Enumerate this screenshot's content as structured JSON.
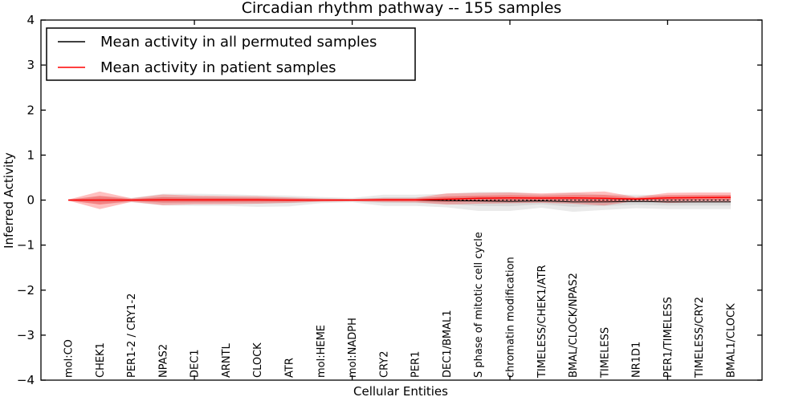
{
  "chart_data": {
    "type": "line",
    "title": "Circadian rhythm pathway -- 155 samples",
    "xlabel": "Cellular Entities",
    "ylabel": "Inferred Activity",
    "ylim": [
      -4,
      4
    ],
    "yticks": [
      -4,
      -3,
      -2,
      -1,
      0,
      1,
      2,
      3,
      4
    ],
    "xtick_indices": [
      4,
      9,
      14,
      19
    ],
    "grid": false,
    "legend_position": "upper left",
    "categories": [
      "mol:CO",
      "CHEK1",
      "PER1-2 / CRY1-2",
      "NPAS2",
      "DEC1",
      "ARNTL",
      "CLOCK",
      "ATR",
      "mol:HEME",
      "mol:NADPH",
      "CRY2",
      "PER1",
      "DEC1/BMAL1",
      "S phase of mitotic cell cycle",
      "chromatin modification",
      "TIMELESS/CHEK1/ATR",
      "BMAL/CLOCK/NPAS2",
      "TIMELESS",
      "NR1D1",
      "PER1/TIMELESS",
      "TIMELESS/CRY2",
      "BMAL1/CLOCK"
    ],
    "zero_line": {
      "y": 0,
      "style": "dashed",
      "color": "#000000"
    },
    "series": [
      {
        "name": "Mean activity in all permuted samples",
        "color": "#000000",
        "band_color": "#888888",
        "mean": [
          0,
          0,
          0,
          0,
          0,
          0,
          0,
          0,
          0,
          0,
          0,
          0,
          -0.01,
          -0.02,
          -0.03,
          -0.02,
          -0.04,
          -0.04,
          -0.03,
          -0.04,
          -0.04,
          -0.04
        ],
        "band_top": [
          0.02,
          0.09,
          0.05,
          0.14,
          0.14,
          0.13,
          0.11,
          0.1,
          0.07,
          0.05,
          0.12,
          0.12,
          0.14,
          0.18,
          0.18,
          0.13,
          0.16,
          0.12,
          0.12,
          0.11,
          0.11,
          0.11
        ],
        "band_bottom": [
          -0.02,
          -0.09,
          -0.05,
          -0.12,
          -0.13,
          -0.13,
          -0.15,
          -0.14,
          -0.07,
          -0.05,
          -0.13,
          -0.13,
          -0.16,
          -0.24,
          -0.24,
          -0.17,
          -0.26,
          -0.22,
          -0.18,
          -0.2,
          -0.2,
          -0.2
        ]
      },
      {
        "name": "Mean activity in patient samples",
        "color": "#ff0000",
        "band_color": "#ff0000",
        "mean": [
          0,
          0,
          0,
          0.005,
          0.005,
          0.005,
          0.005,
          0,
          0,
          0,
          0.005,
          0.005,
          0.02,
          0.04,
          0.05,
          0.045,
          0.05,
          0.04,
          0.025,
          0.05,
          0.055,
          0.06
        ],
        "band_top": [
          0.01,
          0.19,
          0.04,
          0.125,
          0.1,
          0.09,
          0.085,
          0.06,
          0.035,
          0.025,
          0.05,
          0.05,
          0.15,
          0.16,
          0.17,
          0.15,
          0.17,
          0.19,
          0.07,
          0.16,
          0.17,
          0.17
        ],
        "band_bottom": [
          -0.01,
          -0.2,
          -0.04,
          -0.11,
          -0.095,
          -0.09,
          -0.08,
          -0.06,
          -0.035,
          -0.025,
          -0.045,
          -0.05,
          -0.1,
          -0.08,
          -0.07,
          -0.06,
          -0.08,
          -0.12,
          -0.02,
          -0.065,
          -0.05,
          -0.05
        ]
      }
    ]
  }
}
